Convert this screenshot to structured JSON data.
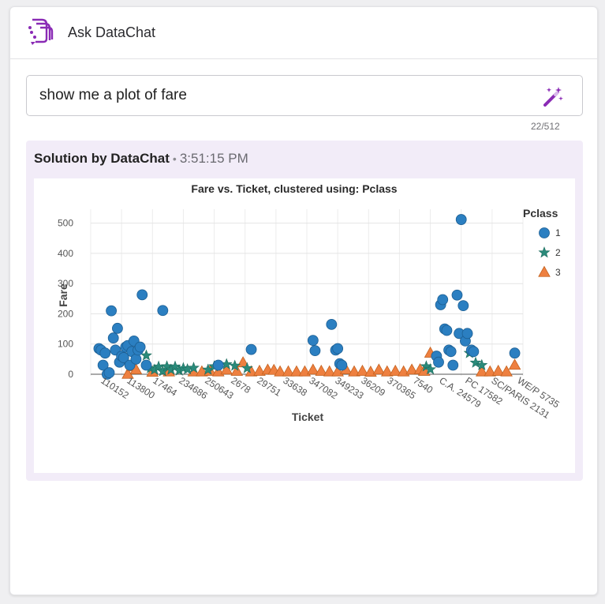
{
  "app": {
    "title": "Ask DataChat"
  },
  "query": {
    "value": "show me a plot of fare",
    "counter": "22/512"
  },
  "solution": {
    "label": "Solution by DataChat",
    "separator": "•",
    "time": "3:51:15 PM"
  },
  "colors": {
    "class1": "#2b7fc1",
    "class2": "#2a8a7a",
    "class3": "#ee8040",
    "brand": "#8a2bb5"
  },
  "icons": {
    "logo": "datachat-logo-icon",
    "magic": "magic-wand-icon"
  },
  "chart_data": {
    "type": "scatter",
    "title": "Fare vs. Ticket, clustered using: Pclass",
    "xlabel": "Ticket",
    "ylabel": "Fare",
    "ylim": [
      0,
      520
    ],
    "yticks": [
      0,
      100,
      200,
      300,
      400,
      500
    ],
    "xticks": [
      "110152",
      "113800",
      "17464",
      "234686",
      "250643",
      "2678",
      "29751",
      "33638",
      "347082",
      "349233",
      "36209",
      "370365",
      "7540",
      "C.A. 24579",
      "PC 17582",
      "SC/PARIS 2131",
      "WE/P 5735"
    ],
    "grid": true,
    "legend": {
      "title": "Pclass",
      "placement": "right"
    },
    "series": [
      {
        "name": "1",
        "marker": "circle",
        "points": [
          [
            0.04,
            85
          ],
          [
            0.05,
            80
          ],
          [
            0.06,
            30
          ],
          [
            0.07,
            70
          ],
          [
            0.08,
            0
          ],
          [
            0.09,
            5
          ],
          [
            0.1,
            210
          ],
          [
            0.11,
            120
          ],
          [
            0.12,
            80
          ],
          [
            0.13,
            152
          ],
          [
            0.14,
            40
          ],
          [
            0.15,
            60
          ],
          [
            0.16,
            55
          ],
          [
            0.17,
            90
          ],
          [
            0.18,
            95
          ],
          [
            0.19,
            30
          ],
          [
            0.2,
            75
          ],
          [
            0.21,
            110
          ],
          [
            0.22,
            50
          ],
          [
            0.23,
            80
          ],
          [
            0.24,
            90
          ],
          [
            0.25,
            263
          ],
          [
            0.27,
            30
          ],
          [
            0.35,
            211
          ],
          [
            0.62,
            30
          ],
          [
            0.78,
            82
          ],
          [
            1.08,
            112
          ],
          [
            1.09,
            78
          ],
          [
            1.17,
            165
          ],
          [
            1.19,
            80
          ],
          [
            1.2,
            85
          ],
          [
            1.21,
            35
          ],
          [
            1.22,
            30
          ],
          [
            1.68,
            60
          ],
          [
            1.69,
            40
          ],
          [
            1.7,
            230
          ],
          [
            1.71,
            247
          ],
          [
            1.72,
            150
          ],
          [
            1.73,
            145
          ],
          [
            1.74,
            80
          ],
          [
            1.75,
            75
          ],
          [
            1.76,
            30
          ],
          [
            1.78,
            262
          ],
          [
            1.79,
            135
          ],
          [
            1.8,
            512
          ],
          [
            1.81,
            227
          ],
          [
            1.82,
            110
          ],
          [
            1.83,
            135
          ],
          [
            1.85,
            80
          ],
          [
            1.86,
            75
          ],
          [
            2.06,
            70
          ]
        ]
      },
      {
        "name": "2",
        "marker": "star",
        "points": [
          [
            0.27,
            62
          ],
          [
            0.29,
            20
          ],
          [
            0.31,
            15
          ],
          [
            0.33,
            25
          ],
          [
            0.35,
            10
          ],
          [
            0.37,
            26
          ],
          [
            0.39,
            15
          ],
          [
            0.41,
            25
          ],
          [
            0.43,
            12
          ],
          [
            0.45,
            20
          ],
          [
            0.47,
            16
          ],
          [
            0.5,
            21
          ],
          [
            0.57,
            15
          ],
          [
            0.6,
            26
          ],
          [
            0.66,
            33
          ],
          [
            0.7,
            28
          ],
          [
            0.76,
            20
          ],
          [
            1.63,
            26
          ],
          [
            1.65,
            16
          ],
          [
            1.84,
            70
          ],
          [
            1.87,
            38
          ],
          [
            1.9,
            30
          ]
        ]
      },
      {
        "name": "3",
        "marker": "triangle",
        "points": [
          [
            0.18,
            0
          ],
          [
            0.2,
            25
          ],
          [
            0.22,
            15
          ],
          [
            0.3,
            7
          ],
          [
            0.38,
            8
          ],
          [
            0.5,
            8
          ],
          [
            0.54,
            8
          ],
          [
            0.58,
            10
          ],
          [
            0.62,
            8
          ],
          [
            0.66,
            14
          ],
          [
            0.71,
            10
          ],
          [
            0.74,
            38
          ],
          [
            0.78,
            8
          ],
          [
            0.82,
            10
          ],
          [
            0.86,
            14
          ],
          [
            0.89,
            13
          ],
          [
            0.92,
            8
          ],
          [
            0.96,
            8
          ],
          [
            1.0,
            8
          ],
          [
            1.04,
            8
          ],
          [
            1.08,
            14
          ],
          [
            1.12,
            10
          ],
          [
            1.16,
            8
          ],
          [
            1.2,
            8
          ],
          [
            1.24,
            15
          ],
          [
            1.28,
            8
          ],
          [
            1.32,
            10
          ],
          [
            1.36,
            7
          ],
          [
            1.4,
            14
          ],
          [
            1.44,
            8
          ],
          [
            1.48,
            10
          ],
          [
            1.52,
            8
          ],
          [
            1.56,
            14
          ],
          [
            1.6,
            15
          ],
          [
            1.62,
            10
          ],
          [
            1.65,
            70
          ],
          [
            1.9,
            8
          ],
          [
            1.94,
            8
          ],
          [
            1.98,
            10
          ],
          [
            2.02,
            8
          ],
          [
            2.06,
            30
          ]
        ]
      }
    ]
  }
}
